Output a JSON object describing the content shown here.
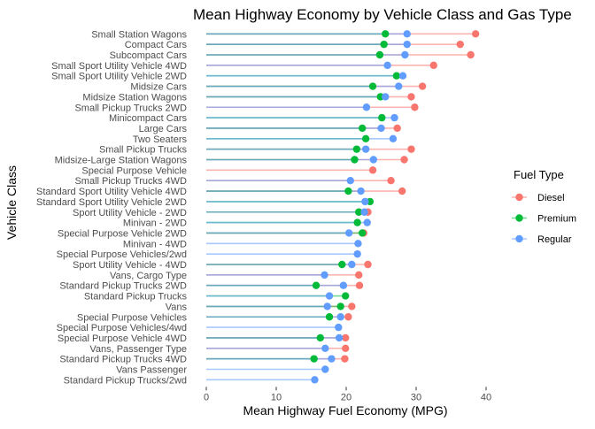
{
  "chart_data": {
    "type": "scatter",
    "title": "Mean Highway Economy by Vehicle Class and Gas Type",
    "xlabel": "Mean Highway Fuel Economy (MPG)",
    "ylabel": "Vehicle Class",
    "xlim": [
      0,
      40
    ],
    "xticks": [
      "0",
      "10",
      "20",
      "30",
      "40"
    ],
    "grid": false,
    "legend": {
      "title": "Fuel Type",
      "position": "right",
      "entries": [
        {
          "name": "Diesel",
          "color": "#F8766D"
        },
        {
          "name": "Premium",
          "color": "#00BA38"
        },
        {
          "name": "Regular",
          "color": "#619CFF"
        }
      ]
    },
    "categories": [
      "Small Station Wagons",
      "Compact Cars",
      "Subcompact Cars",
      "Small Sport Utility Vehicle 4WD",
      "Small Sport Utility Vehicle 2WD",
      "Midsize Cars",
      "Midsize Station Wagons",
      "Small Pickup Trucks 2WD",
      "Minicompact Cars",
      "Large Cars",
      "Two Seaters",
      "Small Pickup Trucks",
      "Midsize-Large Station Wagons",
      "Special Purpose Vehicle",
      "Small Pickup Trucks 4WD",
      "Standard Sport Utility Vehicle 4WD",
      "Standard Sport Utility Vehicle 2WD",
      "Sport Utility Vehicle - 2WD",
      "Minivan - 2WD",
      "Special Purpose Vehicle 2WD",
      "Minivan - 4WD",
      "Special Purpose Vehicles/2wd",
      "Sport Utility Vehicle - 4WD",
      "Vans, Cargo Type",
      "Standard Pickup Trucks 2WD",
      "Standard Pickup Trucks",
      "Vans",
      "Special Purpose Vehicles",
      "Special Purpose Vehicles/4wd",
      "Special Purpose Vehicle 4WD",
      "Vans, Passenger Type",
      "Standard Pickup Trucks 4WD",
      "Vans Passenger",
      "Standard Pickup Trucks/2wd"
    ],
    "series": [
      {
        "name": "Diesel",
        "color": "#F8766D",
        "values": [
          38.5,
          36.3,
          37.8,
          32.5,
          null,
          30.9,
          29.3,
          29.8,
          null,
          27.3,
          null,
          29.3,
          28.3,
          23.8,
          26.4,
          28.0,
          null,
          23.1,
          null,
          22.5,
          null,
          null,
          23.1,
          21.8,
          21.9,
          null,
          20.8,
          20.3,
          null,
          19.9,
          19.9,
          19.8,
          null,
          null
        ]
      },
      {
        "name": "Premium",
        "color": "#00BA38",
        "values": [
          25.6,
          25.4,
          24.8,
          null,
          27.2,
          23.8,
          24.9,
          null,
          25.1,
          22.3,
          22.8,
          21.5,
          21.2,
          null,
          null,
          20.3,
          23.4,
          21.8,
          21.6,
          22.3,
          null,
          null,
          19.4,
          null,
          15.7,
          19.9,
          19.2,
          17.6,
          null,
          16.3,
          null,
          15.4,
          null,
          null
        ]
      },
      {
        "name": "Regular",
        "color": "#619CFF",
        "values": [
          28.7,
          28.7,
          28.4,
          25.9,
          28.1,
          27.5,
          25.6,
          22.9,
          26.9,
          25.0,
          26.7,
          22.8,
          23.9,
          null,
          20.6,
          22.1,
          22.7,
          22.6,
          23.0,
          20.4,
          21.7,
          21.6,
          20.8,
          16.9,
          19.6,
          17.6,
          17.3,
          19.2,
          18.9,
          19.0,
          17.0,
          17.9,
          17.0,
          15.5
        ]
      }
    ]
  }
}
